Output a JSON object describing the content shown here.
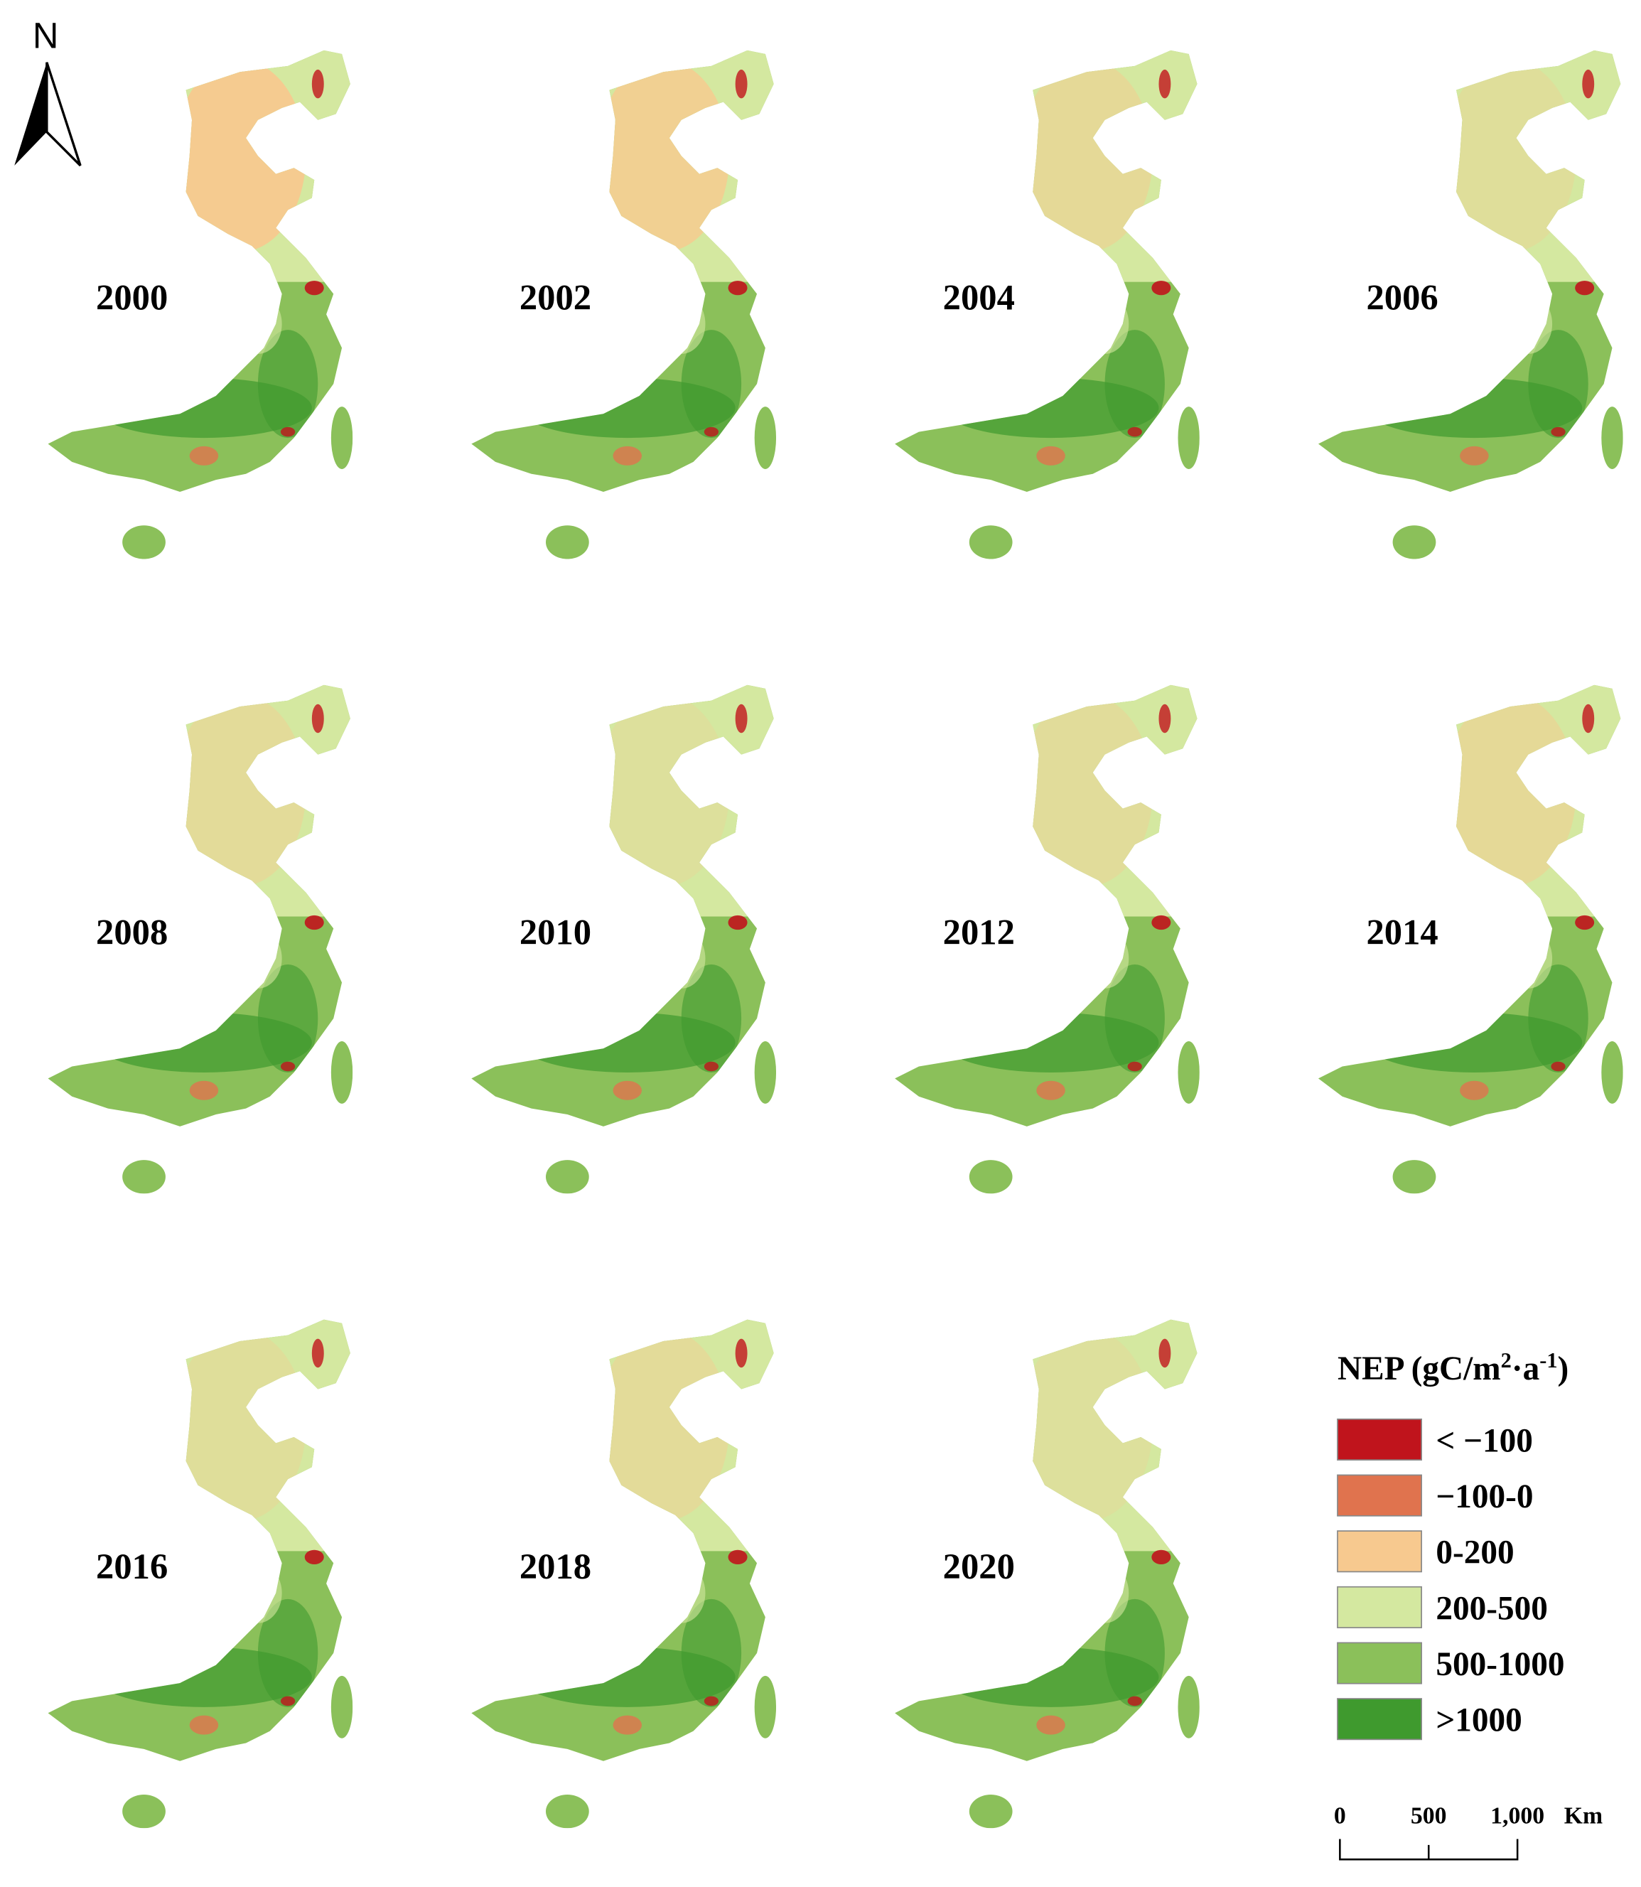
{
  "north_label": "N",
  "panels": [
    {
      "label": "2000"
    },
    {
      "label": "2002"
    },
    {
      "label": "2004"
    },
    {
      "label": "2006"
    },
    {
      "label": "2008"
    },
    {
      "label": "2010"
    },
    {
      "label": "2012"
    },
    {
      "label": "2014"
    },
    {
      "label": "2016"
    },
    {
      "label": "2018"
    },
    {
      "label": "2020"
    }
  ],
  "legend": {
    "title": {
      "text": "NEP (gC/m",
      "sup1": "2",
      "mid": "·a",
      "sup2": "-1",
      "end": ")"
    },
    "items": [
      {
        "label": "< −100",
        "color": "#c0141c"
      },
      {
        "label": "−100-0",
        "color": "#e0734e"
      },
      {
        "label": "0-200",
        "color": "#f7c98f"
      },
      {
        "label": "200-500",
        "color": "#d4e8a0"
      },
      {
        "label": "500-1000",
        "color": "#8bc05a"
      },
      {
        "label": ">1000",
        "color": "#3f9a2e"
      }
    ]
  },
  "scale_bar": {
    "labels": [
      "0",
      "500",
      "1,000"
    ],
    "unit": "Km"
  }
}
